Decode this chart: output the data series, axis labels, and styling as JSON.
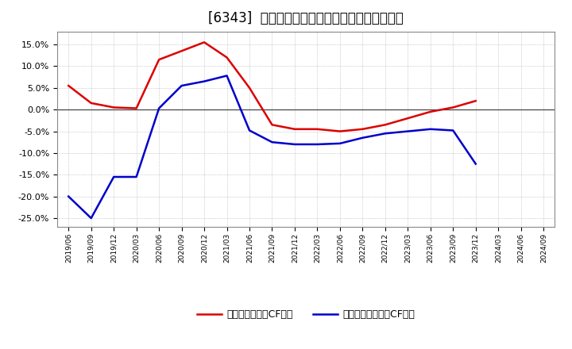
{
  "title": "[6343]  有利子負債キャッシュフロー比率の推移",
  "legend_red": "有利子負債営業CF比率",
  "legend_blue": "有利子負債フリーCF比率",
  "x_labels": [
    "2019/06",
    "2019/09",
    "2019/12",
    "2020/03",
    "2020/06",
    "2020/09",
    "2020/12",
    "2021/03",
    "2021/06",
    "2021/09",
    "2021/12",
    "2022/03",
    "2022/06",
    "2022/09",
    "2022/12",
    "2023/03",
    "2023/06",
    "2023/09",
    "2023/12",
    "2024/03",
    "2024/06",
    "2024/09"
  ],
  "red_values": [
    5.5,
    1.5,
    0.5,
    0.3,
    11.5,
    13.5,
    15.5,
    12.0,
    5.0,
    -3.5,
    -4.5,
    -4.5,
    -5.0,
    -4.5,
    -3.5,
    -2.0,
    -0.5,
    0.5,
    2.0,
    null,
    null,
    null
  ],
  "blue_values": [
    -20.0,
    -25.0,
    -15.5,
    -15.5,
    0.3,
    5.5,
    6.5,
    7.8,
    -4.8,
    -7.5,
    -8.0,
    -8.0,
    -7.8,
    -6.5,
    -5.5,
    -5.0,
    -4.5,
    -4.8,
    -12.5,
    null,
    null,
    null
  ],
  "ylim": [
    -27,
    18
  ],
  "yticks": [
    -25.0,
    -20.0,
    -15.0,
    -10.0,
    -5.0,
    0.0,
    5.0,
    10.0,
    15.0
  ],
  "background_color": "#ffffff",
  "plot_bg_color": "#ffffff",
  "grid_color": "#aaaaaa",
  "red_color": "#dd0000",
  "blue_color": "#0000cc",
  "title_fontsize": 12
}
